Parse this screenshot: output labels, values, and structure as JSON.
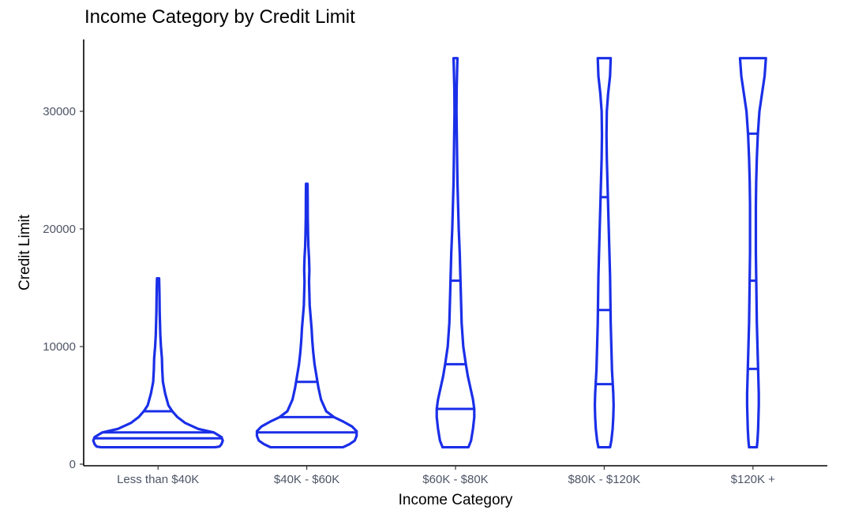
{
  "chart_data": {
    "type": "violin",
    "title": "Income Category by Credit Limit",
    "xlabel": "Income Category",
    "ylabel": "Credit Limit",
    "categories": [
      "Less than $40K",
      "$40K - $60K",
      "$60K - $80K",
      "$80K - $120K",
      "$120K +"
    ],
    "ylim": [
      0,
      36000
    ],
    "yticks": [
      0,
      10000,
      20000,
      30000
    ],
    "grid": false,
    "color": "#1a2fe8",
    "violins": [
      {
        "category": "Less than $40K",
        "quantiles": [
          2200,
          2700,
          4500
        ],
        "profile": [
          [
            1438,
            0.88
          ],
          [
            1500,
            0.95
          ],
          [
            1700,
            0.98
          ],
          [
            2000,
            1.0
          ],
          [
            2300,
            0.98
          ],
          [
            2700,
            0.86
          ],
          [
            3000,
            0.62
          ],
          [
            3500,
            0.42
          ],
          [
            4000,
            0.3
          ],
          [
            4500,
            0.22
          ],
          [
            5000,
            0.16
          ],
          [
            6000,
            0.11
          ],
          [
            7000,
            0.075
          ],
          [
            8000,
            0.065
          ],
          [
            9000,
            0.06
          ],
          [
            10000,
            0.045
          ],
          [
            11000,
            0.035
          ],
          [
            12000,
            0.03
          ],
          [
            13000,
            0.025
          ],
          [
            14000,
            0.023
          ],
          [
            15000,
            0.02
          ],
          [
            15800,
            0.016
          ]
        ]
      },
      {
        "category": "$40K - $60K",
        "quantiles": [
          2700,
          4000,
          7000
        ],
        "profile": [
          [
            1438,
            0.56
          ],
          [
            1700,
            0.66
          ],
          [
            2000,
            0.74
          ],
          [
            2400,
            0.77
          ],
          [
            2800,
            0.77
          ],
          [
            3200,
            0.7
          ],
          [
            3600,
            0.57
          ],
          [
            4000,
            0.42
          ],
          [
            4500,
            0.3
          ],
          [
            5500,
            0.22
          ],
          [
            6500,
            0.18
          ],
          [
            7500,
            0.15
          ],
          [
            8500,
            0.12
          ],
          [
            9500,
            0.1
          ],
          [
            10500,
            0.085
          ],
          [
            11500,
            0.075
          ],
          [
            12500,
            0.06
          ],
          [
            13500,
            0.045
          ],
          [
            14500,
            0.04
          ],
          [
            15500,
            0.035
          ],
          [
            16500,
            0.04
          ],
          [
            17500,
            0.035
          ],
          [
            18500,
            0.025
          ],
          [
            19500,
            0.02
          ],
          [
            21000,
            0.015
          ],
          [
            22500,
            0.014
          ],
          [
            23836,
            0.012
          ]
        ]
      },
      {
        "category": "$60K - $80K",
        "quantiles": [
          4700,
          8500,
          15600
        ],
        "profile": [
          [
            1438,
            0.2
          ],
          [
            2000,
            0.24
          ],
          [
            3000,
            0.27
          ],
          [
            4000,
            0.29
          ],
          [
            4700,
            0.29
          ],
          [
            5500,
            0.27
          ],
          [
            6500,
            0.23
          ],
          [
            7500,
            0.19
          ],
          [
            8500,
            0.16
          ],
          [
            10000,
            0.12
          ],
          [
            12000,
            0.095
          ],
          [
            14000,
            0.085
          ],
          [
            16000,
            0.075
          ],
          [
            18000,
            0.065
          ],
          [
            20000,
            0.05
          ],
          [
            22000,
            0.04
          ],
          [
            24000,
            0.03
          ],
          [
            26000,
            0.025
          ],
          [
            28000,
            0.02
          ],
          [
            30000,
            0.015
          ],
          [
            32000,
            0.018
          ],
          [
            33500,
            0.025
          ],
          [
            34516,
            0.03
          ]
        ]
      },
      {
        "category": "$80K - $120K",
        "quantiles": [
          6800,
          13100,
          22700
        ],
        "profile": [
          [
            1438,
            0.09
          ],
          [
            2000,
            0.11
          ],
          [
            3000,
            0.13
          ],
          [
            4000,
            0.14
          ],
          [
            5000,
            0.145
          ],
          [
            6000,
            0.14
          ],
          [
            7000,
            0.13
          ],
          [
            8000,
            0.12
          ],
          [
            10000,
            0.11
          ],
          [
            12000,
            0.1
          ],
          [
            14000,
            0.095
          ],
          [
            16000,
            0.09
          ],
          [
            18000,
            0.08
          ],
          [
            20000,
            0.07
          ],
          [
            22000,
            0.06
          ],
          [
            24000,
            0.05
          ],
          [
            26000,
            0.04
          ],
          [
            28000,
            0.035
          ],
          [
            30000,
            0.04
          ],
          [
            31500,
            0.06
          ],
          [
            33000,
            0.09
          ],
          [
            34516,
            0.1
          ]
        ]
      },
      {
        "category": "$120K +",
        "quantiles": [
          8100,
          15600,
          28100
        ],
        "profile": [
          [
            1438,
            0.06
          ],
          [
            2000,
            0.07
          ],
          [
            3000,
            0.08
          ],
          [
            4000,
            0.085
          ],
          [
            5000,
            0.09
          ],
          [
            6000,
            0.09
          ],
          [
            7000,
            0.085
          ],
          [
            8000,
            0.08
          ],
          [
            10000,
            0.07
          ],
          [
            12000,
            0.06
          ],
          [
            14000,
            0.055
          ],
          [
            16000,
            0.05
          ],
          [
            18000,
            0.045
          ],
          [
            20000,
            0.045
          ],
          [
            22000,
            0.045
          ],
          [
            24000,
            0.05
          ],
          [
            26000,
            0.06
          ],
          [
            28000,
            0.075
          ],
          [
            30000,
            0.1
          ],
          [
            31500,
            0.14
          ],
          [
            33000,
            0.18
          ],
          [
            34516,
            0.2
          ]
        ]
      }
    ]
  }
}
